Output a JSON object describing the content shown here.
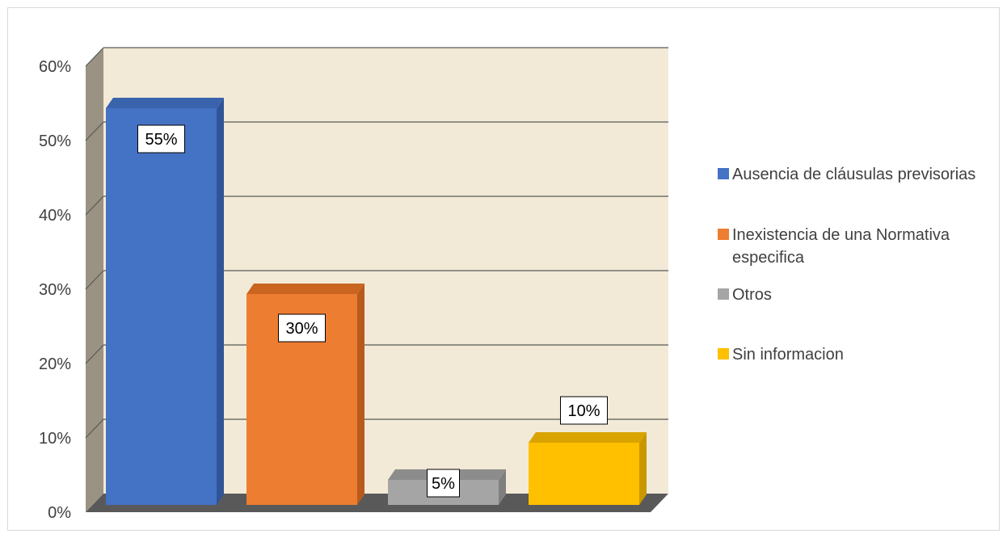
{
  "chart_data": {
    "type": "bar",
    "categories": [
      "Ausencia de cláusulas previsorias",
      "Inexistencia de una Normativa especifica",
      "Otros",
      "Sin informacion"
    ],
    "values": [
      55,
      30,
      5,
      10
    ],
    "value_labels": [
      "55%",
      "30%",
      "5%",
      "10%"
    ],
    "ylim": [
      0,
      60
    ],
    "yticks": [
      "0%",
      "10%",
      "20%",
      "30%",
      "40%",
      "50%",
      "60%"
    ],
    "grid": true,
    "three_d": true,
    "legend_position": "right",
    "legend": [
      {
        "label_lines": [
          "Ausencia de cláusulas previsorias"
        ]
      },
      {
        "label_lines": [
          "Inexistencia de una Normativa",
          "especifica"
        ]
      },
      {
        "label_lines": [
          "Otros"
        ]
      },
      {
        "label_lines": [
          "Sin informacion"
        ]
      }
    ],
    "colors": {
      "bars": [
        "#4472c4",
        "#ed7d31",
        "#a5a5a5",
        "#ffc000"
      ],
      "bar_sides": [
        "#2f5597",
        "#b85a1c",
        "#7f7f7f",
        "#c99700"
      ],
      "bar_tops": [
        "#3a63ad",
        "#c9651f",
        "#8c8c8c",
        "#d9a300"
      ],
      "back_wall": "#f2ead6",
      "side_wall": "#9a9282",
      "floor": "#595959",
      "gridline": "#595959"
    }
  }
}
